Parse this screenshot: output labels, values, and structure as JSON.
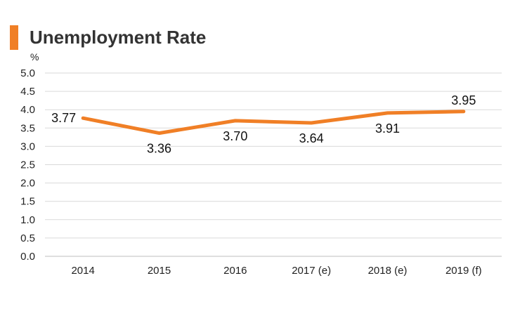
{
  "header": {
    "title": "Unemployment Rate"
  },
  "colors": {
    "accent": "#f07f26",
    "grid": "#d9d9d9",
    "text": "#222222"
  },
  "chart_data": {
    "type": "line",
    "title": "Unemployment Rate",
    "ylabel": "%",
    "xlabel": "",
    "categories": [
      "2014",
      "2015",
      "2016",
      "2017 (e)",
      "2018 (e)",
      "2019 (f)"
    ],
    "series": [
      {
        "values": [
          3.77,
          3.36,
          3.7,
          3.64,
          3.91,
          3.95
        ],
        "labels": [
          "3.77",
          "3.36",
          "3.70",
          "3.64",
          "3.91",
          "3.95"
        ]
      }
    ],
    "yticks": [
      "0.0",
      "0.5",
      "1.0",
      "1.5",
      "2.0",
      "2.5",
      "3.0",
      "3.5",
      "4.0",
      "4.5",
      "5.0"
    ],
    "ylim": [
      0,
      5
    ],
    "grid": true,
    "legend": "none",
    "label_placement": [
      "left",
      "below",
      "below",
      "below",
      "below",
      "above"
    ]
  }
}
